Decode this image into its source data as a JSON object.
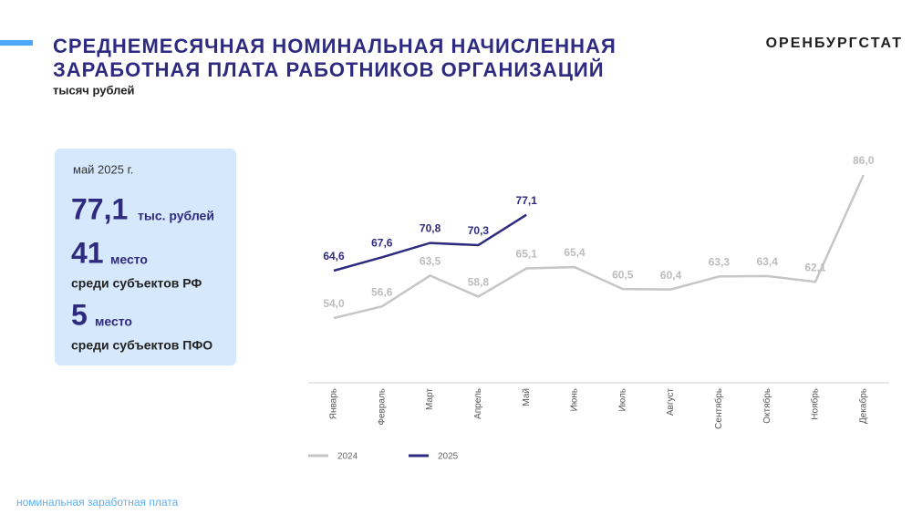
{
  "header": {
    "title": [
      "СРЕДНЕМЕСЯЧНАЯ НОМИНАЛЬНАЯ НАЧИСЛЕННАЯ",
      "ЗАРАБОТНАЯ ПЛАТА РАБОТНИКОВ ОРГАНИЗАЦИЙ"
    ],
    "subtitle": "тысяч рублей",
    "brand": "ОРЕНБУРГСТАТ"
  },
  "card": {
    "date": "май 2025 г.",
    "value": "77,1",
    "value_unit": "тыс. рублей",
    "rank_rf": "41",
    "rank_rf_word": "место",
    "rank_rf_text": "среди субъектов РФ",
    "rank_pfo": "5",
    "rank_pfo_word": "место",
    "rank_pfo_text": "среди субъектов ПФО"
  },
  "footer": "номинальная заработная плата",
  "chart_data": {
    "type": "line",
    "categories": [
      "Январь",
      "Февраль",
      "Март",
      "Апрель",
      "Май",
      "Июнь",
      "Июль",
      "Август",
      "Сентябрь",
      "Октябрь",
      "Ноябрь",
      "Декабрь"
    ],
    "series": [
      {
        "name": "2024",
        "color": "#c6c6c6",
        "label_color": "#bdbdbd",
        "values": [
          54.0,
          56.6,
          63.5,
          58.8,
          65.1,
          65.4,
          60.5,
          60.4,
          63.3,
          63.4,
          62.1,
          86.0
        ],
        "value_labels": [
          "54,0",
          "56,6",
          "63,5",
          "58,8",
          "65,1",
          "65,4",
          "60,5",
          "60,4",
          "63,3",
          "63,4",
          "62,1",
          "86,0"
        ]
      },
      {
        "name": "2025",
        "color": "#2e2a7f",
        "label_color": "#2e2a7f",
        "values": [
          64.6,
          67.6,
          70.8,
          70.3,
          77.1,
          null,
          null,
          null,
          null,
          null,
          null,
          null
        ],
        "value_labels": [
          "64,6",
          "67,6",
          "70,8",
          "70,3",
          "77,1",
          null,
          null,
          null,
          null,
          null,
          null,
          null
        ]
      }
    ]
  }
}
